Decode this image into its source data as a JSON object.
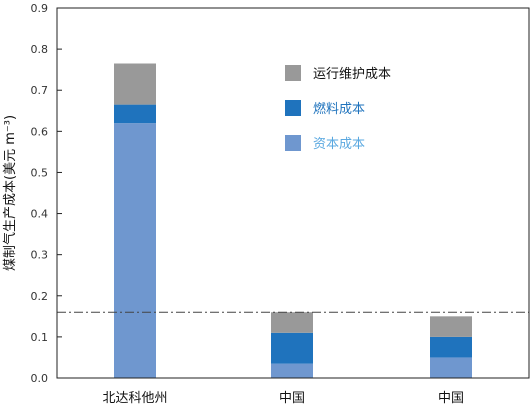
{
  "chart_data": {
    "type": "bar",
    "stacked": true,
    "categories": [
      "北达科他州",
      "中国",
      "中国"
    ],
    "series": [
      {
        "name": "资本成本",
        "color": "#6f97cf",
        "values": [
          0.62,
          0.035,
          0.05
        ]
      },
      {
        "name": "燃料成本",
        "color": "#1f73bd",
        "values": [
          0.045,
          0.075,
          0.05
        ]
      },
      {
        "name": "运行维护成本",
        "color": "#999999",
        "values": [
          0.1,
          0.05,
          0.05
        ]
      }
    ],
    "ylabel": "煤制气生产成本(美元  m⁻³)",
    "ylim": [
      0,
      0.9
    ],
    "yticks": [
      "0.0",
      "0.1",
      "0.2",
      "0.3",
      "0.4",
      "0.5",
      "0.6",
      "0.7",
      "0.8",
      "0.9"
    ],
    "reference_line": 0.16,
    "legend": {
      "placement": "top-center",
      "items": [
        {
          "label": "运行维护成本",
          "swatch": "#999999",
          "text_color": "#111111"
        },
        {
          "label": "燃料成本",
          "swatch": "#1f73bd",
          "text_color": "#1f73bd"
        },
        {
          "label": "资本成本",
          "swatch": "#6f97cf",
          "text_color": "#5aa8e0"
        }
      ]
    },
    "grid": false
  }
}
